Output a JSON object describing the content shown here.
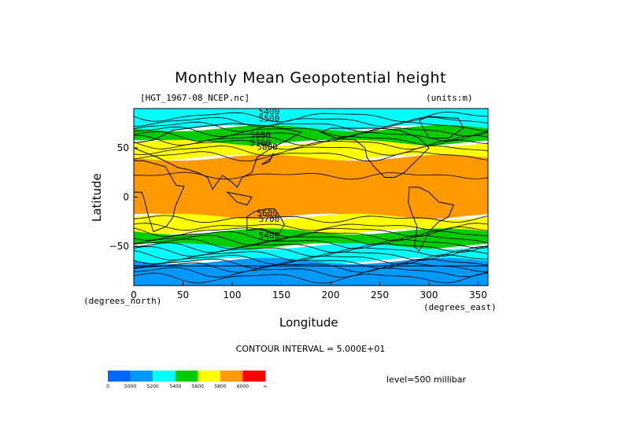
{
  "plot": {
    "title": "Monthly Mean Geopotential height",
    "file_label": "[HGT_1967-08_NCEP.nc]",
    "units_label": "(units:m)",
    "x_title": "Longitude",
    "y_title": "Latitude",
    "x_units": "(degrees_east)",
    "y_units": "(degrees_north)",
    "contour_interval": "CONTOUR INTERVAL = 5.000E+01",
    "level": "level=500 millibar",
    "x_ticks": [
      "0",
      "50",
      "100",
      "150",
      "200",
      "250",
      "300",
      "350"
    ],
    "y_ticks": [
      "50",
      "0",
      "−50"
    ],
    "contour_labels": [
      "5400",
      "5500",
      "5600",
      "5700",
      "5800",
      "5600",
      "5700",
      "5400"
    ]
  },
  "colorbar": {
    "labels": [
      "0",
      "5000",
      "5200",
      "5400",
      "5600",
      "5800",
      "6000",
      "∞"
    ],
    "colors": [
      "#0066ff",
      "#0099ff",
      "#00ffff",
      "#00cc00",
      "#ffff00",
      "#ff9900",
      "#ff0000"
    ]
  },
  "chart_data": {
    "type": "heatmap",
    "variable": "Geopotential height",
    "units": "m",
    "level": "500 millibar",
    "xlim": [
      0,
      360
    ],
    "ylim": [
      -90,
      90
    ],
    "x_ticks": [
      0,
      50,
      100,
      150,
      200,
      250,
      300,
      350
    ],
    "y_ticks": [
      50,
      0,
      -50
    ],
    "contour_interval": 50,
    "color_levels": [
      0,
      5000,
      5200,
      5400,
      5600,
      5800,
      6000
    ],
    "zonal_bands": [
      {
        "lat": [
          70,
          90
        ],
        "value": 5300
      },
      {
        "lat": [
          55,
          70
        ],
        "value": 5500
      },
      {
        "lat": [
          40,
          55
        ],
        "value": 5700
      },
      {
        "lat": [
          -20,
          40
        ],
        "value": 5850
      },
      {
        "lat": [
          -35,
          -20
        ],
        "value": 5700
      },
      {
        "lat": [
          -50,
          -35
        ],
        "value": 5500
      },
      {
        "lat": [
          -65,
          -50
        ],
        "value": 5300
      },
      {
        "lat": [
          -90,
          -65
        ],
        "value": 5100
      }
    ]
  }
}
